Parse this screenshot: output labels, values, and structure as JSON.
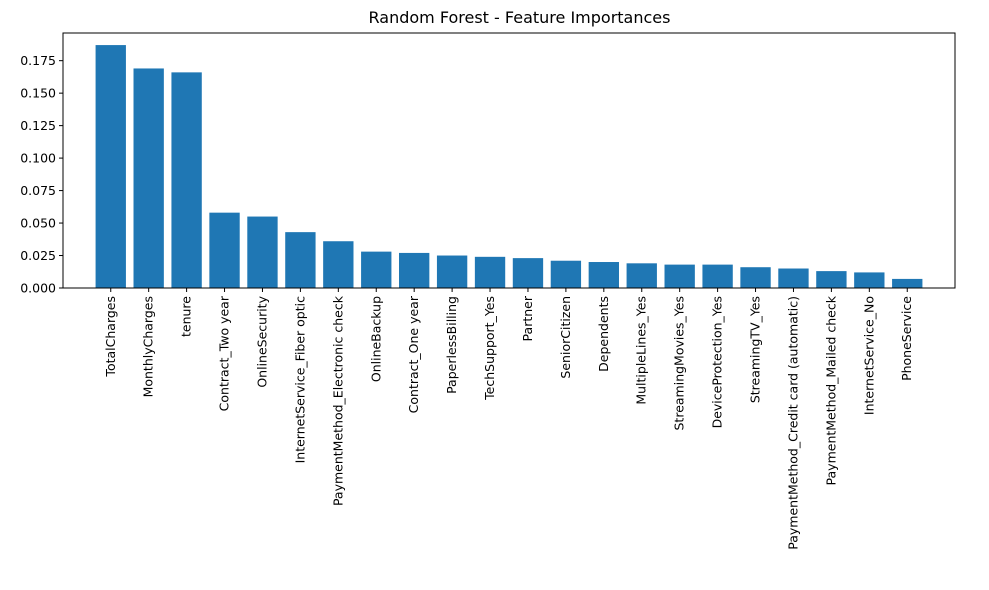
{
  "chart_data": {
    "type": "bar",
    "title": "Random Forest - Feature Importances",
    "xlabel": "",
    "ylabel": "",
    "categories": [
      "TotalCharges",
      "MonthlyCharges",
      "tenure",
      "Contract_Two year",
      "OnlineSecurity",
      "InternetService_Fiber optic",
      "PaymentMethod_Electronic check",
      "OnlineBackup",
      "Contract_One year",
      "PaperlessBilling",
      "TechSupport_Yes",
      "Partner",
      "SeniorCitizen",
      "Dependents",
      "MultipleLines_Yes",
      "StreamingMovies_Yes",
      "DeviceProtection_Yes",
      "StreamingTV_Yes",
      "PaymentMethod_Credit card (automatic)",
      "PaymentMethod_Mailed check",
      "InternetService_No",
      "PhoneService"
    ],
    "values": [
      0.187,
      0.169,
      0.166,
      0.058,
      0.055,
      0.043,
      0.036,
      0.028,
      0.027,
      0.025,
      0.024,
      0.023,
      0.021,
      0.02,
      0.019,
      0.018,
      0.018,
      0.016,
      0.015,
      0.013,
      0.012,
      0.007
    ],
    "ylim": [
      0,
      0.1963
    ],
    "yticks": [
      0.0,
      0.025,
      0.05,
      0.075,
      0.1,
      0.125,
      0.15,
      0.175
    ],
    "ytick_labels": [
      "0.000",
      "0.025",
      "0.050",
      "0.075",
      "0.100",
      "0.125",
      "0.150",
      "0.175"
    ],
    "bar_color": "#1f77b4",
    "grid": false,
    "legend": "none"
  }
}
